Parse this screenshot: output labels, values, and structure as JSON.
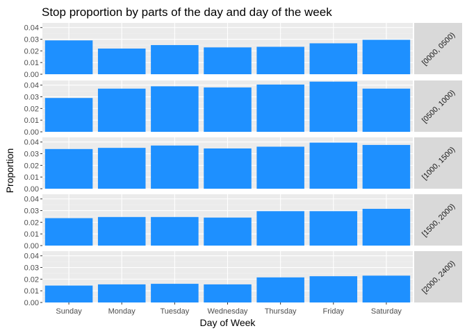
{
  "chart_data": {
    "type": "bar",
    "title": "Stop proportion by parts of the day and day of the week",
    "xlabel": "Day of Week",
    "ylabel": "Proportion",
    "categories": [
      "Sunday",
      "Monday",
      "Tuesday",
      "Wednesday",
      "Thursday",
      "Friday",
      "Saturday"
    ],
    "yticks": [
      "0.00",
      "0.01",
      "0.02",
      "0.03",
      "0.04"
    ],
    "ylim": [
      0,
      0.044
    ],
    "grid": true,
    "bar_color": "#1e90ff",
    "panel_background": "#ebebeb",
    "strip_background": "#d9d9d9",
    "facets": [
      {
        "label": "[0000, 0500)",
        "values": [
          0.029,
          0.022,
          0.025,
          0.023,
          0.0235,
          0.0265,
          0.0295
        ]
      },
      {
        "label": "[0500, 1000)",
        "values": [
          0.029,
          0.037,
          0.039,
          0.038,
          0.0405,
          0.043,
          0.037
        ]
      },
      {
        "label": "[1000, 1500)",
        "values": [
          0.034,
          0.035,
          0.037,
          0.0345,
          0.036,
          0.0395,
          0.0375
        ]
      },
      {
        "label": "[1500, 2000)",
        "values": [
          0.0235,
          0.0245,
          0.0245,
          0.024,
          0.0295,
          0.0295,
          0.0315
        ]
      },
      {
        "label": "[2000, 2400)",
        "values": [
          0.0145,
          0.0155,
          0.016,
          0.0155,
          0.0215,
          0.0225,
          0.023
        ]
      }
    ]
  }
}
